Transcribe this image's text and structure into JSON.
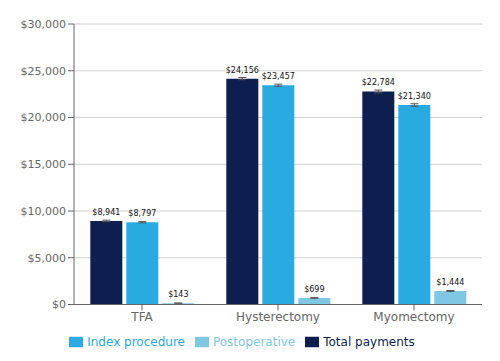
{
  "chart_data": {
    "type": "bar",
    "categories": [
      "TFA",
      "Hysterectomy",
      "Myomectomy"
    ],
    "series": [
      {
        "name": "Total payments",
        "color": "#0d1f4e",
        "values": [
          8941,
          24156,
          22784
        ],
        "errors": [
          80,
          120,
          150
        ],
        "value_labels": [
          "$8,941",
          "$24,156",
          "$22,784"
        ]
      },
      {
        "name": "Index procedure",
        "color": "#29abe2",
        "values": [
          8797,
          23457,
          21340
        ],
        "errors": [
          70,
          110,
          130
        ],
        "value_labels": [
          "$8,797",
          "$23,457",
          "$21,340"
        ]
      },
      {
        "name": "Postoperative",
        "color": "#7ec8e3",
        "values": [
          143,
          699,
          1444
        ],
        "errors": [
          15,
          35,
          50
        ],
        "value_labels": [
          "$143",
          "$699",
          "$1,444"
        ]
      }
    ],
    "ylim": [
      0,
      30000
    ],
    "yticks": [
      {
        "value": 0,
        "label": "$0"
      },
      {
        "value": 5000,
        "label": "$5,000"
      },
      {
        "value": 10000,
        "label": "$10,000"
      },
      {
        "value": 15000,
        "label": "$15,000"
      },
      {
        "value": 20000,
        "label": "$20,000"
      },
      {
        "value": 25000,
        "label": "$25,000"
      },
      {
        "value": 30000,
        "label": "$30,000"
      }
    ],
    "grid": true,
    "legend": "bottom",
    "data_labels": true
  }
}
